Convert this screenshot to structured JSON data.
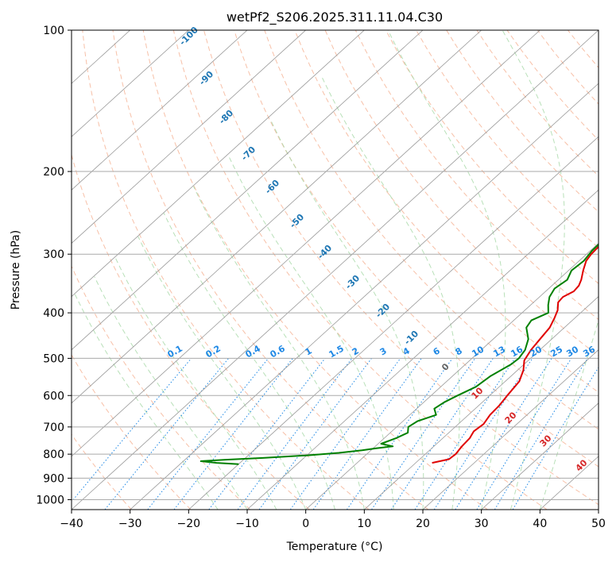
{
  "chart_data": {
    "type": "line",
    "title": "wetPf2_S206.2025.311.11.04.C30",
    "xlabel": "Temperature (°C)",
    "ylabel": "Pressure (hPa)",
    "xlim": [
      -40,
      50
    ],
    "ylim": [
      1050,
      100
    ],
    "y_scale": "log",
    "grid": true,
    "x_ticks": [
      -40,
      -30,
      -20,
      -10,
      0,
      10,
      20,
      30,
      40,
      50
    ],
    "y_ticks": [
      100,
      200,
      300,
      400,
      500,
      600,
      700,
      800,
      900,
      1000
    ],
    "isotherm_labels": [
      -100,
      -90,
      -80,
      -70,
      -60,
      -50,
      -40,
      -30,
      -20,
      -10
    ],
    "dry_adiabat_labels": [
      0,
      10,
      20,
      30,
      40
    ],
    "mixing_ratio_labels": [
      "0.1",
      "0.2",
      "0.4",
      "0.6",
      "1",
      "1.5",
      "2",
      "3",
      "4",
      "6",
      "8",
      "10",
      "13",
      "16",
      "20",
      "25",
      "30",
      "36"
    ],
    "series": [
      {
        "name": "Temperature",
        "color": "#e00000",
        "points": [
          [
            835,
            12.8
          ],
          [
            820,
            15.0
          ],
          [
            800,
            15.2
          ],
          [
            770,
            14.8
          ],
          [
            740,
            14.6
          ],
          [
            715,
            14.0
          ],
          [
            690,
            14.3
          ],
          [
            660,
            13.7
          ],
          [
            630,
            13.5
          ],
          [
            600,
            13.0
          ],
          [
            560,
            12.4
          ],
          [
            530,
            11.0
          ],
          [
            505,
            9.3
          ],
          [
            480,
            8.5
          ],
          [
            455,
            8.0
          ],
          [
            430,
            7.5
          ],
          [
            410,
            6.5
          ],
          [
            395,
            5.6
          ],
          [
            380,
            4.2
          ],
          [
            370,
            4.0
          ],
          [
            360,
            4.8
          ],
          [
            350,
            4.6
          ],
          [
            340,
            3.9
          ],
          [
            325,
            2.5
          ],
          [
            310,
            1.2
          ],
          [
            300,
            0.8
          ],
          [
            285,
            0.6
          ],
          [
            270,
            0.3
          ],
          [
            255,
            -0.3
          ],
          [
            240,
            -1.0
          ],
          [
            225,
            -1.7
          ],
          [
            215,
            -1.5
          ],
          [
            208,
            -0.3
          ],
          [
            200,
            1.8
          ],
          [
            192,
            3.8
          ],
          [
            180,
            5.5
          ],
          [
            165,
            6.7
          ],
          [
            150,
            8.7
          ],
          [
            140,
            10.0
          ],
          [
            130,
            10.8
          ],
          [
            120,
            12.6
          ],
          [
            110,
            13.6
          ],
          [
            100,
            15.2
          ]
        ]
      },
      {
        "name": "Dewpoint",
        "color": "#008000",
        "points": [
          [
            840,
            -20.0
          ],
          [
            835,
            -24.0
          ],
          [
            828,
            -27.0
          ],
          [
            822,
            -23.0
          ],
          [
            815,
            -17.0
          ],
          [
            805,
            -10.0
          ],
          [
            795,
            -5.0
          ],
          [
            785,
            -1.5
          ],
          [
            777,
            0.5
          ],
          [
            770,
            3.0
          ],
          [
            760,
            0.5
          ],
          [
            740,
            2.0
          ],
          [
            720,
            3.0
          ],
          [
            700,
            2.0
          ],
          [
            680,
            2.5
          ],
          [
            660,
            4.5
          ],
          [
            640,
            3.0
          ],
          [
            620,
            3.5
          ],
          [
            600,
            4.5
          ],
          [
            575,
            6.0
          ],
          [
            545,
            6.5
          ],
          [
            515,
            7.8
          ],
          [
            500,
            8.0
          ],
          [
            480,
            7.5
          ],
          [
            455,
            6.0
          ],
          [
            430,
            3.5
          ],
          [
            415,
            3.0
          ],
          [
            400,
            4.5
          ],
          [
            385,
            3.0
          ],
          [
            370,
            1.7
          ],
          [
            355,
            1.0
          ],
          [
            340,
            1.5
          ],
          [
            325,
            0.5
          ],
          [
            310,
            0.8
          ],
          [
            295,
            0.3
          ],
          [
            280,
            0.2
          ],
          [
            260,
            -0.2
          ],
          [
            240,
            -1.1
          ],
          [
            225,
            -2.0
          ],
          [
            215,
            -2.5
          ],
          [
            205,
            -5.0
          ],
          [
            195,
            -8.5
          ],
          [
            188,
            -9.8
          ],
          [
            180,
            -9.6
          ],
          [
            170,
            -9.0
          ],
          [
            160,
            -8.0
          ],
          [
            150,
            -6.5
          ],
          [
            140,
            -5.5
          ],
          [
            130,
            -4.5
          ],
          [
            120,
            -4.0
          ],
          [
            110,
            -2.5
          ],
          [
            100,
            -0.2
          ]
        ]
      }
    ]
  }
}
